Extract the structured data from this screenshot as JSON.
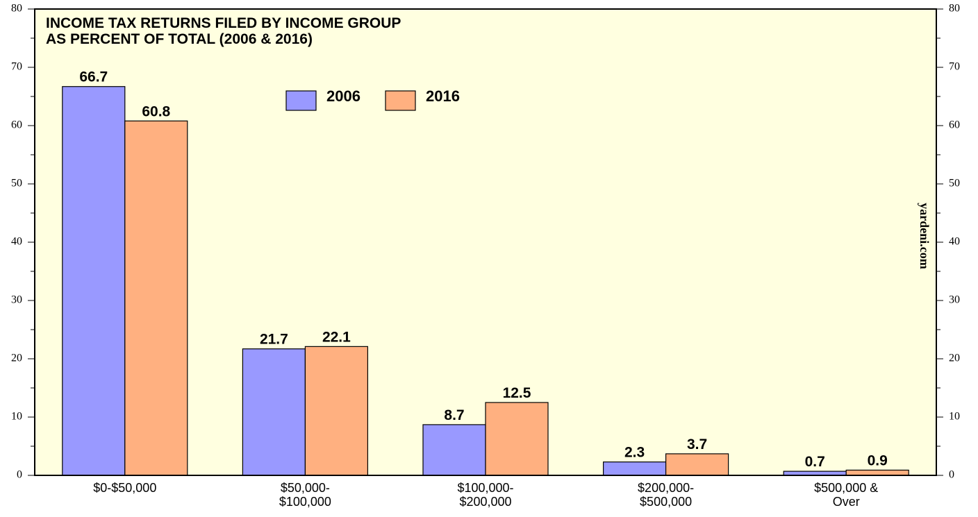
{
  "chart_data": {
    "type": "bar",
    "title_lines": [
      "INCOME TAX RETURNS FILED BY INCOME GROUP",
      "AS PERCENT OF TOTAL (2006 & 2016)"
    ],
    "source": "yardeni.com",
    "categories": [
      [
        "$0-$50,000"
      ],
      [
        "$50,000-",
        "$100,000"
      ],
      [
        "$100,000-",
        "$200,000"
      ],
      [
        "$200,000-",
        "$500,000"
      ],
      [
        "$500,000 &",
        "Over"
      ]
    ],
    "series": [
      {
        "name": "2006",
        "color": "#9999ff",
        "values": [
          66.7,
          21.7,
          8.7,
          2.3,
          0.7
        ]
      },
      {
        "name": "2016",
        "color": "#ffb080",
        "values": [
          60.8,
          22.1,
          12.5,
          3.7,
          0.9
        ]
      }
    ],
    "ylim": [
      0,
      80
    ],
    "yticks": [
      0,
      10,
      20,
      30,
      40,
      50,
      60,
      70,
      80
    ],
    "minor_yticks": [
      5,
      15,
      25,
      35,
      45,
      55,
      65,
      75
    ],
    "y2lim": [
      0,
      80
    ],
    "y2ticks": [
      0,
      10,
      20,
      30,
      40,
      50,
      60,
      70,
      80
    ],
    "background": "#ffffe0"
  }
}
